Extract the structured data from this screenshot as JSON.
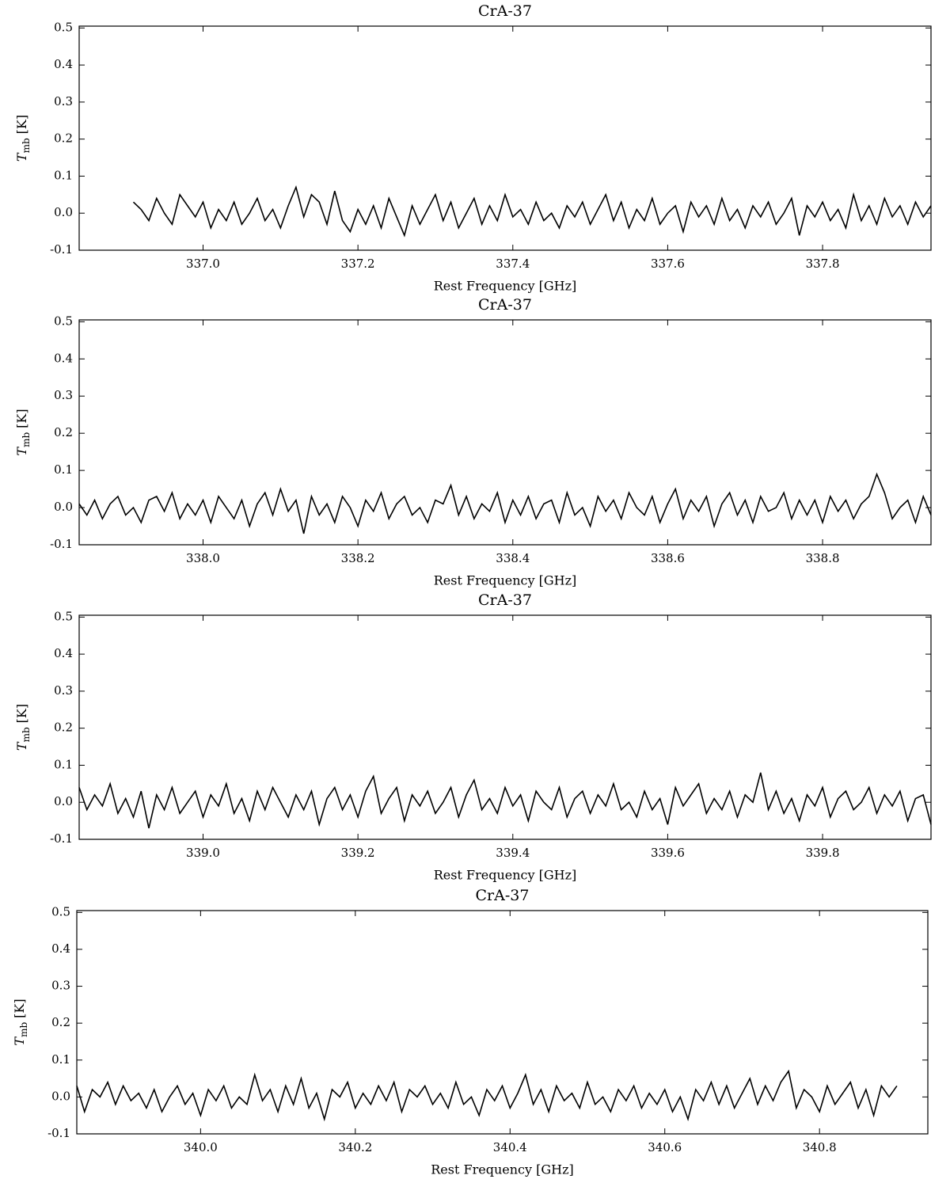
{
  "chart_data": [
    {
      "type": "line",
      "title": "CrA-37",
      "xlabel": "Rest Frequency [GHz]",
      "ylabel": {
        "symbol": "T",
        "subscript": "mb",
        "unit": "[K]"
      },
      "xlim": [
        336.84,
        337.94
      ],
      "ylim": [
        -0.1,
        0.505
      ],
      "xticks": [
        {
          "value": 337.0,
          "label": "337.0"
        },
        337.2,
        337.4,
        337.6,
        337.8
      ],
      "yticks": [
        -0.1,
        {
          "value": 0,
          "label": "0.0"
        },
        0.1,
        0.2,
        0.3,
        0.4,
        0.5
      ],
      "series": [
        {
          "color": "#000000",
          "x": [
            336.91,
            336.92,
            336.93,
            336.94,
            336.95,
            336.96,
            336.97,
            336.98,
            336.99,
            337.0,
            337.01,
            337.02,
            337.03,
            337.04,
            337.05,
            337.06,
            337.07,
            337.08,
            337.09,
            337.1,
            337.11,
            337.12,
            337.13,
            337.14,
            337.15,
            337.16,
            337.17,
            337.18,
            337.19,
            337.2,
            337.21,
            337.22,
            337.23,
            337.24,
            337.25,
            337.26,
            337.27,
            337.28,
            337.29,
            337.3,
            337.31,
            337.32,
            337.33,
            337.34,
            337.35,
            337.36,
            337.37,
            337.38,
            337.39,
            337.4,
            337.41,
            337.42,
            337.43,
            337.44,
            337.45,
            337.46,
            337.47,
            337.48,
            337.49,
            337.5,
            337.51,
            337.52,
            337.53,
            337.54,
            337.55,
            337.56,
            337.57,
            337.58,
            337.59,
            337.6,
            337.61,
            337.62,
            337.63,
            337.64,
            337.65,
            337.66,
            337.67,
            337.68,
            337.69,
            337.7,
            337.71,
            337.72,
            337.73,
            337.74,
            337.75,
            337.76,
            337.77,
            337.78,
            337.79,
            337.8,
            337.81,
            337.82,
            337.83,
            337.84,
            337.85,
            337.86,
            337.87,
            337.88,
            337.89,
            337.9,
            337.91,
            337.92,
            337.93,
            337.94
          ],
          "values": [
            0.03,
            0.01,
            -0.02,
            0.04,
            0.0,
            -0.03,
            0.05,
            0.02,
            -0.01,
            0.03,
            -0.04,
            0.01,
            -0.02,
            0.03,
            -0.03,
            0.0,
            0.04,
            -0.02,
            0.01,
            -0.04,
            0.02,
            0.07,
            -0.01,
            0.05,
            0.03,
            -0.03,
            0.06,
            -0.02,
            -0.05,
            0.01,
            -0.03,
            0.02,
            -0.04,
            0.04,
            -0.01,
            -0.06,
            0.02,
            -0.03,
            0.01,
            0.05,
            -0.02,
            0.03,
            -0.04,
            0.0,
            0.04,
            -0.03,
            0.02,
            -0.02,
            0.05,
            -0.01,
            0.01,
            -0.03,
            0.03,
            -0.02,
            0.0,
            -0.04,
            0.02,
            -0.01,
            0.03,
            -0.03,
            0.01,
            0.05,
            -0.02,
            0.03,
            -0.04,
            0.01,
            -0.02,
            0.04,
            -0.03,
            0.0,
            0.02,
            -0.05,
            0.03,
            -0.01,
            0.02,
            -0.03,
            0.04,
            -0.02,
            0.01,
            -0.04,
            0.02,
            -0.01,
            0.03,
            -0.03,
            0.0,
            0.04,
            -0.06,
            0.02,
            -0.01,
            0.03,
            -0.02,
            0.01,
            -0.04,
            0.05,
            -0.02,
            0.02,
            -0.03,
            0.04,
            -0.01,
            0.02,
            -0.03,
            0.03,
            -0.01,
            0.02
          ]
        }
      ]
    },
    {
      "type": "line",
      "title": "CrA-37",
      "xlabel": "Rest Frequency [GHz]",
      "ylabel": {
        "symbol": "T",
        "subscript": "mb",
        "unit": "[K]"
      },
      "xlim": [
        337.84,
        338.94
      ],
      "ylim": [
        -0.1,
        0.505
      ],
      "xticks": [
        {
          "value": 338.0,
          "label": "338.0"
        },
        338.2,
        338.4,
        338.6,
        338.8
      ],
      "yticks": [
        -0.1,
        {
          "value": 0,
          "label": "0.0"
        },
        0.1,
        0.2,
        0.3,
        0.4,
        0.5
      ],
      "series": [
        {
          "color": "#000000",
          "x": [
            337.84,
            337.85,
            337.86,
            337.87,
            337.88,
            337.89,
            337.9,
            337.91,
            337.92,
            337.93,
            337.94,
            337.95,
            337.96,
            337.97,
            337.98,
            337.99,
            338.0,
            338.01,
            338.02,
            338.03,
            338.04,
            338.05,
            338.06,
            338.07,
            338.08,
            338.09,
            338.1,
            338.11,
            338.12,
            338.13,
            338.14,
            338.15,
            338.16,
            338.17,
            338.18,
            338.19,
            338.2,
            338.21,
            338.22,
            338.23,
            338.24,
            338.25,
            338.26,
            338.27,
            338.28,
            338.29,
            338.3,
            338.31,
            338.32,
            338.33,
            338.34,
            338.35,
            338.36,
            338.37,
            338.38,
            338.39,
            338.4,
            338.41,
            338.42,
            338.43,
            338.44,
            338.45,
            338.46,
            338.47,
            338.48,
            338.49,
            338.5,
            338.51,
            338.52,
            338.53,
            338.54,
            338.55,
            338.56,
            338.57,
            338.58,
            338.59,
            338.6,
            338.61,
            338.62,
            338.63,
            338.64,
            338.65,
            338.66,
            338.67,
            338.68,
            338.69,
            338.7,
            338.71,
            338.72,
            338.73,
            338.74,
            338.75,
            338.76,
            338.77,
            338.78,
            338.79,
            338.8,
            338.81,
            338.82,
            338.83,
            338.84,
            338.85,
            338.86,
            338.87,
            338.88,
            338.89,
            338.9,
            338.91,
            338.92,
            338.93,
            338.94
          ],
          "values": [
            0.01,
            -0.02,
            0.02,
            -0.03,
            0.01,
            0.03,
            -0.02,
            0.0,
            -0.04,
            0.02,
            0.03,
            -0.01,
            0.04,
            -0.03,
            0.01,
            -0.02,
            0.02,
            -0.04,
            0.03,
            0.0,
            -0.03,
            0.02,
            -0.05,
            0.01,
            0.04,
            -0.02,
            0.05,
            -0.01,
            0.02,
            -0.07,
            0.03,
            -0.02,
            0.01,
            -0.04,
            0.03,
            0.0,
            -0.05,
            0.02,
            -0.01,
            0.04,
            -0.03,
            0.01,
            0.03,
            -0.02,
            0.0,
            -0.04,
            0.02,
            0.01,
            0.06,
            -0.02,
            0.03,
            -0.03,
            0.01,
            -0.01,
            0.04,
            -0.04,
            0.02,
            -0.02,
            0.03,
            -0.03,
            0.01,
            0.02,
            -0.04,
            0.04,
            -0.02,
            0.0,
            -0.05,
            0.03,
            -0.01,
            0.02,
            -0.03,
            0.04,
            0.0,
            -0.02,
            0.03,
            -0.04,
            0.01,
            0.05,
            -0.03,
            0.02,
            -0.01,
            0.03,
            -0.05,
            0.01,
            0.04,
            -0.02,
            0.02,
            -0.04,
            0.03,
            -0.01,
            0.0,
            0.04,
            -0.03,
            0.02,
            -0.02,
            0.02,
            -0.04,
            0.03,
            -0.01,
            0.02,
            -0.03,
            0.01,
            0.03,
            0.09,
            0.04,
            -0.03,
            0.0,
            0.02,
            -0.04,
            0.03,
            -0.02
          ]
        }
      ]
    },
    {
      "type": "line",
      "title": "CrA-37",
      "xlabel": "Rest Frequency [GHz]",
      "ylabel": {
        "symbol": "T",
        "subscript": "mb",
        "unit": "[K]"
      },
      "xlim": [
        338.84,
        339.94
      ],
      "ylim": [
        -0.1,
        0.505
      ],
      "xticks": [
        {
          "value": 339.0,
          "label": "339.0"
        },
        339.2,
        339.4,
        339.6,
        339.8
      ],
      "yticks": [
        -0.1,
        {
          "value": 0,
          "label": "0.0"
        },
        0.1,
        0.2,
        0.3,
        0.4,
        0.5
      ],
      "series": [
        {
          "color": "#000000",
          "x": [
            338.84,
            338.85,
            338.86,
            338.87,
            338.88,
            338.89,
            338.9,
            338.91,
            338.92,
            338.93,
            338.94,
            338.95,
            338.96,
            338.97,
            338.98,
            338.99,
            339.0,
            339.01,
            339.02,
            339.03,
            339.04,
            339.05,
            339.06,
            339.07,
            339.08,
            339.09,
            339.1,
            339.11,
            339.12,
            339.13,
            339.14,
            339.15,
            339.16,
            339.17,
            339.18,
            339.19,
            339.2,
            339.21,
            339.22,
            339.23,
            339.24,
            339.25,
            339.26,
            339.27,
            339.28,
            339.29,
            339.3,
            339.31,
            339.32,
            339.33,
            339.34,
            339.35,
            339.36,
            339.37,
            339.38,
            339.39,
            339.4,
            339.41,
            339.42,
            339.43,
            339.44,
            339.45,
            339.46,
            339.47,
            339.48,
            339.49,
            339.5,
            339.51,
            339.52,
            339.53,
            339.54,
            339.55,
            339.56,
            339.57,
            339.58,
            339.59,
            339.6,
            339.61,
            339.62,
            339.63,
            339.64,
            339.65,
            339.66,
            339.67,
            339.68,
            339.69,
            339.7,
            339.71,
            339.72,
            339.73,
            339.74,
            339.75,
            339.76,
            339.77,
            339.78,
            339.79,
            339.8,
            339.81,
            339.82,
            339.83,
            339.84,
            339.85,
            339.86,
            339.87,
            339.88,
            339.89,
            339.9,
            339.91,
            339.92,
            339.93,
            339.94
          ],
          "values": [
            0.04,
            -0.02,
            0.02,
            -0.01,
            0.05,
            -0.03,
            0.01,
            -0.04,
            0.03,
            -0.07,
            0.02,
            -0.02,
            0.04,
            -0.03,
            0.0,
            0.03,
            -0.04,
            0.02,
            -0.01,
            0.05,
            -0.03,
            0.01,
            -0.05,
            0.03,
            -0.02,
            0.04,
            0.0,
            -0.04,
            0.02,
            -0.02,
            0.03,
            -0.06,
            0.01,
            0.04,
            -0.02,
            0.02,
            -0.04,
            0.03,
            0.07,
            -0.03,
            0.01,
            0.04,
            -0.05,
            0.02,
            -0.01,
            0.03,
            -0.03,
            0.0,
            0.04,
            -0.04,
            0.02,
            0.06,
            -0.02,
            0.01,
            -0.03,
            0.04,
            -0.01,
            0.02,
            -0.05,
            0.03,
            0.0,
            -0.02,
            0.04,
            -0.04,
            0.01,
            0.03,
            -0.03,
            0.02,
            -0.01,
            0.05,
            -0.02,
            0.0,
            -0.04,
            0.03,
            -0.02,
            0.01,
            -0.06,
            0.04,
            -0.01,
            0.02,
            0.05,
            -0.03,
            0.01,
            -0.02,
            0.03,
            -0.04,
            0.02,
            0.0,
            0.08,
            -0.02,
            0.03,
            -0.03,
            0.01,
            -0.05,
            0.02,
            -0.01,
            0.04,
            -0.04,
            0.01,
            0.03,
            -0.02,
            0.0,
            0.04,
            -0.03,
            0.02,
            -0.01,
            0.03,
            -0.05,
            0.01,
            0.02,
            -0.06
          ]
        }
      ]
    },
    {
      "type": "line",
      "title": "CrA-37",
      "xlabel": "Rest Frequency [GHz]",
      "ylabel": {
        "symbol": "T",
        "subscript": "mb",
        "unit": "[K]"
      },
      "xlim": [
        339.84,
        340.94
      ],
      "ylim": [
        -0.1,
        0.505
      ],
      "xticks": [
        {
          "value": 340.0,
          "label": "340.0"
        },
        340.2,
        340.4,
        340.6,
        340.8
      ],
      "yticks": [
        -0.1,
        {
          "value": 0,
          "label": "0.0"
        },
        0.1,
        0.2,
        0.3,
        0.4,
        0.5
      ],
      "series": [
        {
          "color": "#000000",
          "x": [
            339.84,
            339.85,
            339.86,
            339.87,
            339.88,
            339.89,
            339.9,
            339.91,
            339.92,
            339.93,
            339.94,
            339.95,
            339.96,
            339.97,
            339.98,
            339.99,
            340.0,
            340.01,
            340.02,
            340.03,
            340.04,
            340.05,
            340.06,
            340.07,
            340.08,
            340.09,
            340.1,
            340.11,
            340.12,
            340.13,
            340.14,
            340.15,
            340.16,
            340.17,
            340.18,
            340.19,
            340.2,
            340.21,
            340.22,
            340.23,
            340.24,
            340.25,
            340.26,
            340.27,
            340.28,
            340.29,
            340.3,
            340.31,
            340.32,
            340.33,
            340.34,
            340.35,
            340.36,
            340.37,
            340.38,
            340.39,
            340.4,
            340.41,
            340.42,
            340.43,
            340.44,
            340.45,
            340.46,
            340.47,
            340.48,
            340.49,
            340.5,
            340.51,
            340.52,
            340.53,
            340.54,
            340.55,
            340.56,
            340.57,
            340.58,
            340.59,
            340.6,
            340.61,
            340.62,
            340.63,
            340.64,
            340.65,
            340.66,
            340.67,
            340.68,
            340.69,
            340.7,
            340.71,
            340.72,
            340.73,
            340.74,
            340.75,
            340.76,
            340.77,
            340.78,
            340.79,
            340.8,
            340.81,
            340.82,
            340.83,
            340.84,
            340.85,
            340.86,
            340.87,
            340.88,
            340.89,
            340.9
          ],
          "values": [
            0.03,
            -0.04,
            0.02,
            0.0,
            0.04,
            -0.02,
            0.03,
            -0.01,
            0.01,
            -0.03,
            0.02,
            -0.04,
            0.0,
            0.03,
            -0.02,
            0.01,
            -0.05,
            0.02,
            -0.01,
            0.03,
            -0.03,
            0.0,
            -0.02,
            0.06,
            -0.01,
            0.02,
            -0.04,
            0.03,
            -0.02,
            0.05,
            -0.03,
            0.01,
            -0.06,
            0.02,
            0.0,
            0.04,
            -0.03,
            0.01,
            -0.02,
            0.03,
            -0.01,
            0.04,
            -0.04,
            0.02,
            0.0,
            0.03,
            -0.02,
            0.01,
            -0.03,
            0.04,
            -0.02,
            0.0,
            -0.05,
            0.02,
            -0.01,
            0.03,
            -0.03,
            0.01,
            0.06,
            -0.02,
            0.02,
            -0.04,
            0.03,
            -0.01,
            0.01,
            -0.03,
            0.04,
            -0.02,
            0.0,
            -0.04,
            0.02,
            -0.01,
            0.03,
            -0.03,
            0.01,
            -0.02,
            0.02,
            -0.04,
            0.0,
            -0.06,
            0.02,
            -0.01,
            0.04,
            -0.02,
            0.03,
            -0.03,
            0.01,
            0.05,
            -0.02,
            0.03,
            -0.01,
            0.04,
            0.07,
            -0.03,
            0.02,
            0.0,
            -0.04,
            0.03,
            -0.02,
            0.01,
            0.04,
            -0.03,
            0.02,
            -0.05,
            0.03,
            0.0,
            0.03
          ]
        }
      ]
    }
  ]
}
